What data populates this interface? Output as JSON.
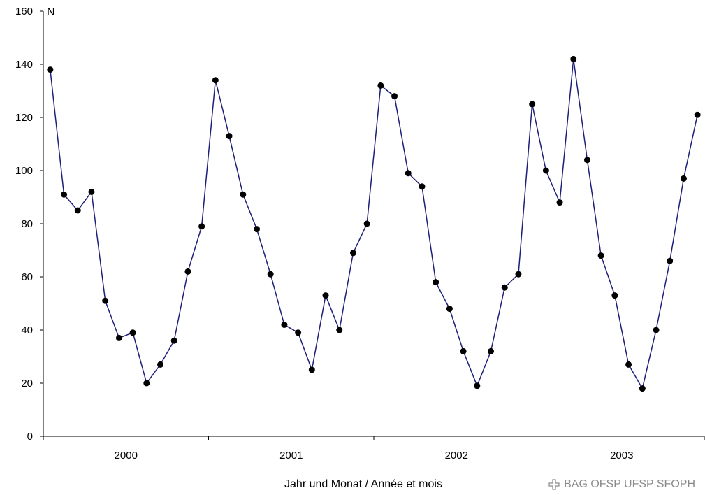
{
  "chart_data": {
    "type": "line",
    "title": "",
    "ylabel": "N",
    "xlabel": "Jahr und Monat / Année et mois",
    "ylim": [
      0,
      160
    ],
    "yticks": [
      0,
      20,
      40,
      60,
      80,
      100,
      120,
      140,
      160
    ],
    "ytick_labels": [
      "0",
      "20",
      "40",
      "60",
      "80",
      "100",
      "120",
      "140",
      "160"
    ],
    "year_labels": [
      "2000",
      "2001",
      "2002",
      "2003"
    ],
    "series_color": "#1f1f7a",
    "marker_color": "#000000",
    "grid": false,
    "legend": "none",
    "x": [
      "2000-01",
      "2000-02",
      "2000-03",
      "2000-04",
      "2000-05",
      "2000-06",
      "2000-07",
      "2000-08",
      "2000-09",
      "2000-10",
      "2000-11",
      "2000-12",
      "2001-01",
      "2001-02",
      "2001-03",
      "2001-04",
      "2001-05",
      "2001-06",
      "2001-07",
      "2001-08",
      "2001-09",
      "2001-10",
      "2001-11",
      "2001-12",
      "2002-01",
      "2002-02",
      "2002-03",
      "2002-04",
      "2002-05",
      "2002-06",
      "2002-07",
      "2002-08",
      "2002-09",
      "2002-10",
      "2002-11",
      "2002-12",
      "2003-01",
      "2003-02",
      "2003-03",
      "2003-04",
      "2003-05",
      "2003-06",
      "2003-07",
      "2003-08",
      "2003-09",
      "2003-10",
      "2003-11",
      "2003-12"
    ],
    "values": [
      138,
      91,
      85,
      92,
      51,
      37,
      39,
      20,
      27,
      36,
      62,
      79,
      134,
      113,
      91,
      78,
      61,
      42,
      39,
      25,
      53,
      40,
      69,
      80,
      132,
      128,
      99,
      94,
      58,
      48,
      32,
      19,
      32,
      56,
      61,
      125,
      100,
      88,
      142,
      104,
      68,
      53,
      27,
      18,
      40,
      66,
      97,
      121
    ]
  },
  "credit": {
    "text": "BAG OFSP UFSP SFOPH",
    "icon": "swiss-cross-icon"
  }
}
